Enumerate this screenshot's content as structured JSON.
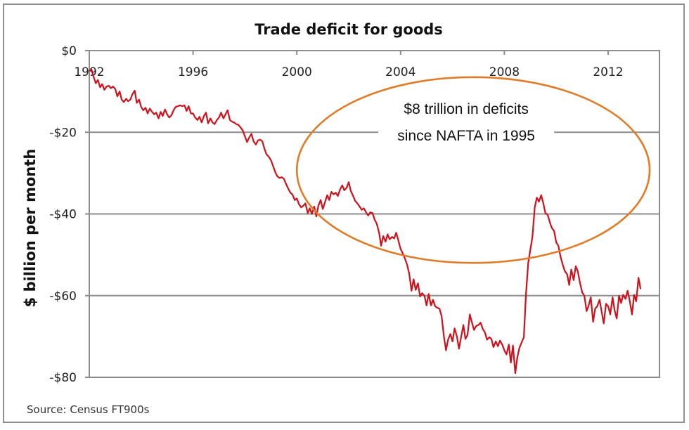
{
  "chart_data": {
    "type": "line",
    "title": "Trade deficit for goods",
    "xlabel": "",
    "ylabel": "$ billion per month",
    "source": "Source: Census FT900s",
    "annotation": {
      "lines": [
        "$8 trillion in deficits",
        "since NAFTA in 1995"
      ],
      "shape": "ellipse",
      "color": "#e07b28",
      "x_range": [
        2000.0,
        2013.6
      ],
      "y_range": [
        -52,
        -6.5
      ]
    },
    "xlim": [
      1992,
      2014
    ],
    "ylim": [
      -80,
      0
    ],
    "x_ticks": [
      {
        "value": 1992,
        "label": "1992"
      },
      {
        "value": 1996,
        "label": "1996"
      },
      {
        "value": 2000,
        "label": "2000"
      },
      {
        "value": 2004,
        "label": "2004"
      },
      {
        "value": 2008,
        "label": "2008"
      },
      {
        "value": 2012,
        "label": "2012"
      }
    ],
    "y_ticks": [
      {
        "value": 0,
        "label": "$0"
      },
      {
        "value": -20,
        "label": "-$20"
      },
      {
        "value": -40,
        "label": "-$40"
      },
      {
        "value": -60,
        "label": "-$60"
      },
      {
        "value": -80,
        "label": "-$80"
      }
    ],
    "grid": true,
    "series": [
      {
        "name": "Trade deficit for goods",
        "color": "#d0101a",
        "x": [
          1992.0,
          1992.08,
          1992.17,
          1992.25,
          1992.33,
          1992.42,
          1992.5,
          1992.58,
          1992.67,
          1992.75,
          1992.83,
          1992.92,
          1993.0,
          1993.08,
          1993.17,
          1993.25,
          1993.33,
          1993.42,
          1993.5,
          1993.58,
          1993.67,
          1993.75,
          1993.83,
          1993.92,
          1994.0,
          1994.08,
          1994.17,
          1994.25,
          1994.33,
          1994.42,
          1994.5,
          1994.58,
          1994.67,
          1994.75,
          1994.83,
          1994.92,
          1995.0,
          1995.08,
          1995.17,
          1995.25,
          1995.33,
          1995.42,
          1995.5,
          1995.58,
          1995.67,
          1995.75,
          1995.83,
          1995.92,
          1996.0,
          1996.08,
          1996.17,
          1996.25,
          1996.33,
          1996.42,
          1996.5,
          1996.58,
          1996.67,
          1996.75,
          1996.83,
          1996.92,
          1997.0,
          1997.08,
          1997.17,
          1997.25,
          1997.33,
          1997.42,
          1997.5,
          1997.58,
          1997.67,
          1997.75,
          1997.83,
          1997.92,
          1998.0,
          1998.08,
          1998.17,
          1998.25,
          1998.33,
          1998.42,
          1998.5,
          1998.58,
          1998.67,
          1998.75,
          1998.83,
          1998.92,
          1999.0,
          1999.08,
          1999.17,
          1999.25,
          1999.33,
          1999.42,
          1999.5,
          1999.58,
          1999.67,
          1999.75,
          1999.83,
          1999.92,
          2000.0,
          2000.08,
          2000.17,
          2000.25,
          2000.33,
          2000.42,
          2000.5,
          2000.58,
          2000.67,
          2000.75,
          2000.83,
          2000.92,
          2001.0,
          2001.08,
          2001.17,
          2001.25,
          2001.33,
          2001.42,
          2001.5,
          2001.58,
          2001.67,
          2001.75,
          2001.83,
          2001.92,
          2002.0,
          2002.08,
          2002.17,
          2002.25,
          2002.33,
          2002.42,
          2002.5,
          2002.58,
          2002.67,
          2002.75,
          2002.83,
          2002.92,
          2003.0,
          2003.08,
          2003.17,
          2003.25,
          2003.33,
          2003.42,
          2003.5,
          2003.58,
          2003.67,
          2003.75,
          2003.83,
          2003.92,
          2004.0,
          2004.08,
          2004.17,
          2004.25,
          2004.33,
          2004.42,
          2004.5,
          2004.58,
          2004.67,
          2004.75,
          2004.83,
          2004.92,
          2005.0,
          2005.08,
          2005.17,
          2005.25,
          2005.33,
          2005.42,
          2005.5,
          2005.58,
          2005.67,
          2005.75,
          2005.83,
          2005.92,
          2006.0,
          2006.08,
          2006.17,
          2006.25,
          2006.33,
          2006.42,
          2006.5,
          2006.58,
          2006.67,
          2006.75,
          2006.83,
          2006.92,
          2007.0,
          2007.08,
          2007.17,
          2007.25,
          2007.33,
          2007.42,
          2007.5,
          2007.58,
          2007.67,
          2007.75,
          2007.83,
          2007.92,
          2008.0,
          2008.08,
          2008.17,
          2008.25,
          2008.33,
          2008.42,
          2008.5,
          2008.58,
          2008.67,
          2008.75,
          2008.83,
          2008.92,
          2009.0,
          2009.08,
          2009.17,
          2009.25,
          2009.33,
          2009.42,
          2009.5,
          2009.58,
          2009.67,
          2009.75,
          2009.83,
          2009.92,
          2010.0,
          2010.08,
          2010.17,
          2010.25,
          2010.33,
          2010.42,
          2010.5,
          2010.58,
          2010.67,
          2010.75,
          2010.83,
          2010.92,
          2011.0,
          2011.08,
          2011.17,
          2011.25,
          2011.33,
          2011.42,
          2011.5,
          2011.58,
          2011.67,
          2011.75,
          2011.83,
          2011.92,
          2012.0,
          2012.08,
          2012.17,
          2012.25,
          2012.33,
          2012.42,
          2012.5,
          2012.58,
          2012.67,
          2012.75,
          2012.83,
          2012.92,
          2013.0,
          2013.08,
          2013.17,
          2013.25
        ],
        "values": [
          -5.0,
          -4.6,
          -6.5,
          -8.0,
          -7.2,
          -9.0,
          -8.2,
          -9.6,
          -8.8,
          -8.6,
          -9.2,
          -8.8,
          -9.4,
          -11.2,
          -10.0,
          -12.0,
          -12.6,
          -11.8,
          -12.4,
          -12.0,
          -10.6,
          -9.8,
          -12.8,
          -12.0,
          -13.8,
          -14.6,
          -14.0,
          -15.4,
          -14.2,
          -15.0,
          -15.6,
          -15.2,
          -16.6,
          -15.0,
          -16.0,
          -14.4,
          -15.6,
          -16.4,
          -15.8,
          -14.6,
          -13.8,
          -13.6,
          -13.4,
          -13.6,
          -13.4,
          -14.8,
          -13.6,
          -15.4,
          -15.4,
          -16.4,
          -17.0,
          -16.2,
          -17.6,
          -16.0,
          -15.2,
          -17.8,
          -16.6,
          -17.6,
          -18.0,
          -17.0,
          -16.4,
          -15.2,
          -16.6,
          -15.6,
          -14.6,
          -17.0,
          -17.4,
          -17.6,
          -18.0,
          -18.2,
          -18.8,
          -19.6,
          -21.0,
          -22.4,
          -21.2,
          -20.4,
          -22.2,
          -23.0,
          -22.0,
          -21.8,
          -22.2,
          -24.0,
          -25.4,
          -26.0,
          -26.8,
          -28.2,
          -29.8,
          -30.8,
          -31.2,
          -31.0,
          -31.4,
          -32.6,
          -33.8,
          -34.8,
          -35.2,
          -36.6,
          -36.2,
          -37.6,
          -38.4,
          -38.0,
          -37.4,
          -39.8,
          -38.6,
          -40.0,
          -38.2,
          -40.6,
          -38.0,
          -36.6,
          -38.8,
          -37.2,
          -35.4,
          -36.6,
          -34.6,
          -35.2,
          -34.8,
          -35.6,
          -34.0,
          -33.0,
          -34.2,
          -33.6,
          -32.2,
          -34.4,
          -35.6,
          -36.8,
          -37.4,
          -38.2,
          -39.0,
          -38.6,
          -39.6,
          -40.4,
          -39.6,
          -39.8,
          -41.4,
          -42.4,
          -44.6,
          -47.8,
          -45.4,
          -46.8,
          -45.0,
          -46.2,
          -45.6,
          -46.0,
          -44.6,
          -46.6,
          -48.6,
          -49.6,
          -51.0,
          -52.4,
          -54.6,
          -58.8,
          -56.0,
          -58.6,
          -57.0,
          -60.2,
          -59.4,
          -60.0,
          -62.4,
          -59.6,
          -62.4,
          -61.0,
          -62.6,
          -63.0,
          -63.2,
          -65.0,
          -70.0,
          -73.4,
          -70.8,
          -69.4,
          -71.2,
          -68.0,
          -70.0,
          -73.0,
          -70.2,
          -67.2,
          -70.6,
          -69.6,
          -64.6,
          -66.6,
          -68.4,
          -67.4,
          -67.2,
          -66.6,
          -68.2,
          -69.0,
          -70.8,
          -70.2,
          -70.6,
          -72.6,
          -71.2,
          -72.4,
          -71.0,
          -72.0,
          -73.4,
          -74.4,
          -72.0,
          -76.4,
          -72.2,
          -79.0,
          -75.0,
          -72.8,
          -71.4,
          -70.2,
          -60.0,
          -52.0,
          -48.8,
          -45.6,
          -38.4,
          -36.0,
          -37.0,
          -35.4,
          -37.4,
          -39.8,
          -40.2,
          -42.0,
          -43.4,
          -44.2,
          -47.0,
          -47.8,
          -50.6,
          -52.4,
          -54.0,
          -54.8,
          -57.4,
          -53.6,
          -56.2,
          -52.8,
          -54.0,
          -57.0,
          -59.2,
          -60.0,
          -63.8,
          -62.4,
          -60.4,
          -66.4,
          -63.2,
          -62.6,
          -61.0,
          -64.0,
          -66.8,
          -62.0,
          -62.6,
          -64.6,
          -60.4,
          -63.6,
          -65.6,
          -60.0,
          -61.8,
          -59.8,
          -60.8,
          -58.8,
          -61.2,
          -64.6,
          -59.8,
          -61.4,
          -55.6,
          -58.4
        ]
      }
    ]
  }
}
